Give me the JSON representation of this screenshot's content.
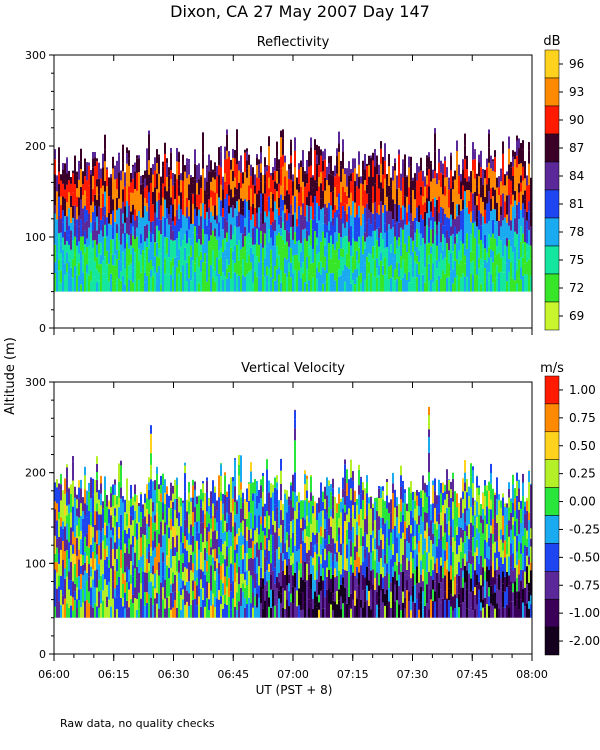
{
  "figure": {
    "title": "Dixon, CA 27 May 2007  Day 147",
    "ylabel": "Altitude (m)",
    "xlabel": "UT  (PST + 8)",
    "footnote": "Raw data, no quality checks"
  },
  "chart_data": [
    {
      "type": "heatmap",
      "title": "Reflectivity",
      "colorbar_unit": "dB",
      "colorbar_ticks": [
        "96",
        "93",
        "90",
        "87",
        "84",
        "81",
        "78",
        "75",
        "72",
        "69"
      ],
      "colorbar_colors": [
        "#ffd21e",
        "#ff8a00",
        "#ff1a00",
        "#3a0028",
        "#5a2898",
        "#1e46f0",
        "#19aaf0",
        "#14e6a0",
        "#37e628",
        "#c8f52d"
      ],
      "ylim": [
        0,
        300
      ],
      "y_ticks": [
        "0",
        "100",
        "200",
        "300"
      ],
      "x_ticks": [
        "06:00",
        "06:15",
        "06:30",
        "06:45",
        "07:00",
        "07:15",
        "07:30",
        "07:45",
        "08:00"
      ],
      "x_range": [
        "06:00",
        "08:00"
      ],
      "data_altitude_range": [
        40,
        280
      ]
    },
    {
      "type": "heatmap",
      "title": "Vertical Velocity",
      "colorbar_unit": "m/s",
      "colorbar_ticks": [
        "1.00",
        "0.75",
        "0.50",
        "0.25",
        "0.00",
        "-0.25",
        "-0.50",
        "-0.75",
        "-1.00",
        "-2.00"
      ],
      "colorbar_colors": [
        "#ff1a00",
        "#ff8a00",
        "#ffd21e",
        "#b4f028",
        "#28e63c",
        "#19aaf0",
        "#1e46f0",
        "#5a2898",
        "#3a0058",
        "#14001e"
      ],
      "ylim": [
        0,
        300
      ],
      "y_ticks": [
        "0",
        "100",
        "200",
        "300"
      ],
      "x_ticks": [
        "06:00",
        "06:15",
        "06:30",
        "06:45",
        "07:00",
        "07:15",
        "07:30",
        "07:45",
        "08:00"
      ],
      "x_range": [
        "06:00",
        "08:00"
      ],
      "data_altitude_range": [
        40,
        280
      ]
    }
  ]
}
